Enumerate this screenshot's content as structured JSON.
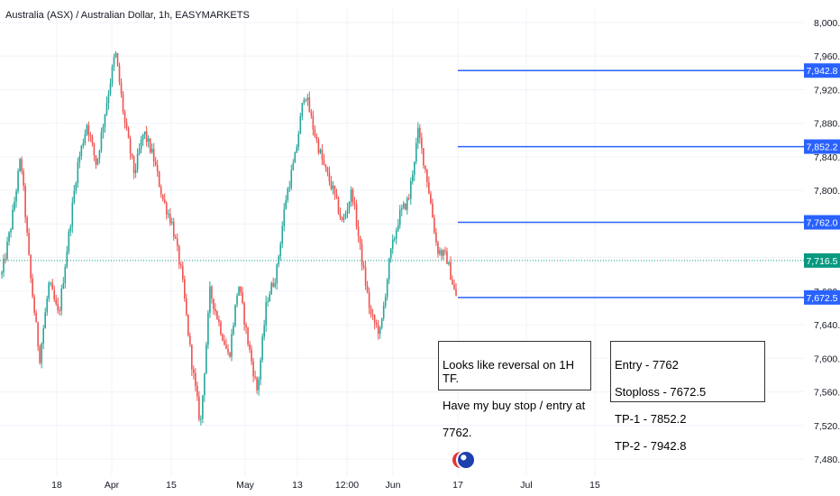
{
  "header": {
    "title": "Australia (ASX) / Australian Dollar, 1h, EASYMARKETS"
  },
  "chart_data": {
    "type": "candlestick",
    "title": "Australia (ASX) / Australian Dollar, 1h, EASYMARKETS",
    "ylim": [
      7460,
      8010
    ],
    "y_ticks": [
      "8,000.0",
      "7,960.0",
      "7,920.0",
      "7,880.0",
      "7,840.0",
      "7,800.0",
      "7,760.0",
      "7,720.0",
      "7,680.0",
      "7,640.0",
      "7,600.0",
      "7,560.0",
      "7,520.0",
      "7,480.0"
    ],
    "y_tick_values": [
      8000,
      7960,
      7920,
      7880,
      7840,
      7800,
      7760,
      7720,
      7680,
      7640,
      7600,
      7560,
      7520,
      7480
    ],
    "x_ticks": [
      "18",
      "Apr",
      "15",
      "May",
      "13",
      "12:00",
      "Jun",
      "17",
      "Jul",
      "15"
    ],
    "current_price": {
      "value": 7716.5,
      "label": "7,716.5",
      "color": "#089981"
    },
    "levels": [
      {
        "name": "TP-2",
        "value": 7942.8,
        "label": "7,942.8"
      },
      {
        "name": "TP-1",
        "value": 7852.2,
        "label": "7,852.2"
      },
      {
        "name": "Entry",
        "value": 7762.0,
        "label": "7,762.0"
      },
      {
        "name": "Stoploss",
        "value": 7672.5,
        "label": "7,672.5"
      }
    ],
    "level_color": "#2962ff",
    "up_color": "#26a69a",
    "down_color": "#ef5350",
    "price_path": [
      7700,
      7760,
      7840,
      7700,
      7600,
      7690,
      7650,
      7740,
      7830,
      7880,
      7830,
      7900,
      7965,
      7880,
      7820,
      7870,
      7840,
      7790,
      7760,
      7700,
      7600,
      7520,
      7680,
      7640,
      7600,
      7690,
      7620,
      7560,
      7670,
      7700,
      7790,
      7840,
      7920,
      7870,
      7830,
      7800,
      7760,
      7800,
      7720,
      7650,
      7630,
      7720,
      7770,
      7790,
      7870,
      7810,
      7730,
      7720,
      7672
    ]
  },
  "annotations": {
    "note1": {
      "lines": [
        "Looks like reversal on 1H TF.",
        "Have my buy stop / entry at",
        "7762."
      ]
    },
    "note2": {
      "lines": [
        "Entry - 7762",
        "Stoploss - 7672.5",
        "TP-1 - 7852.2",
        "TP-2 - 7942.8"
      ]
    }
  }
}
